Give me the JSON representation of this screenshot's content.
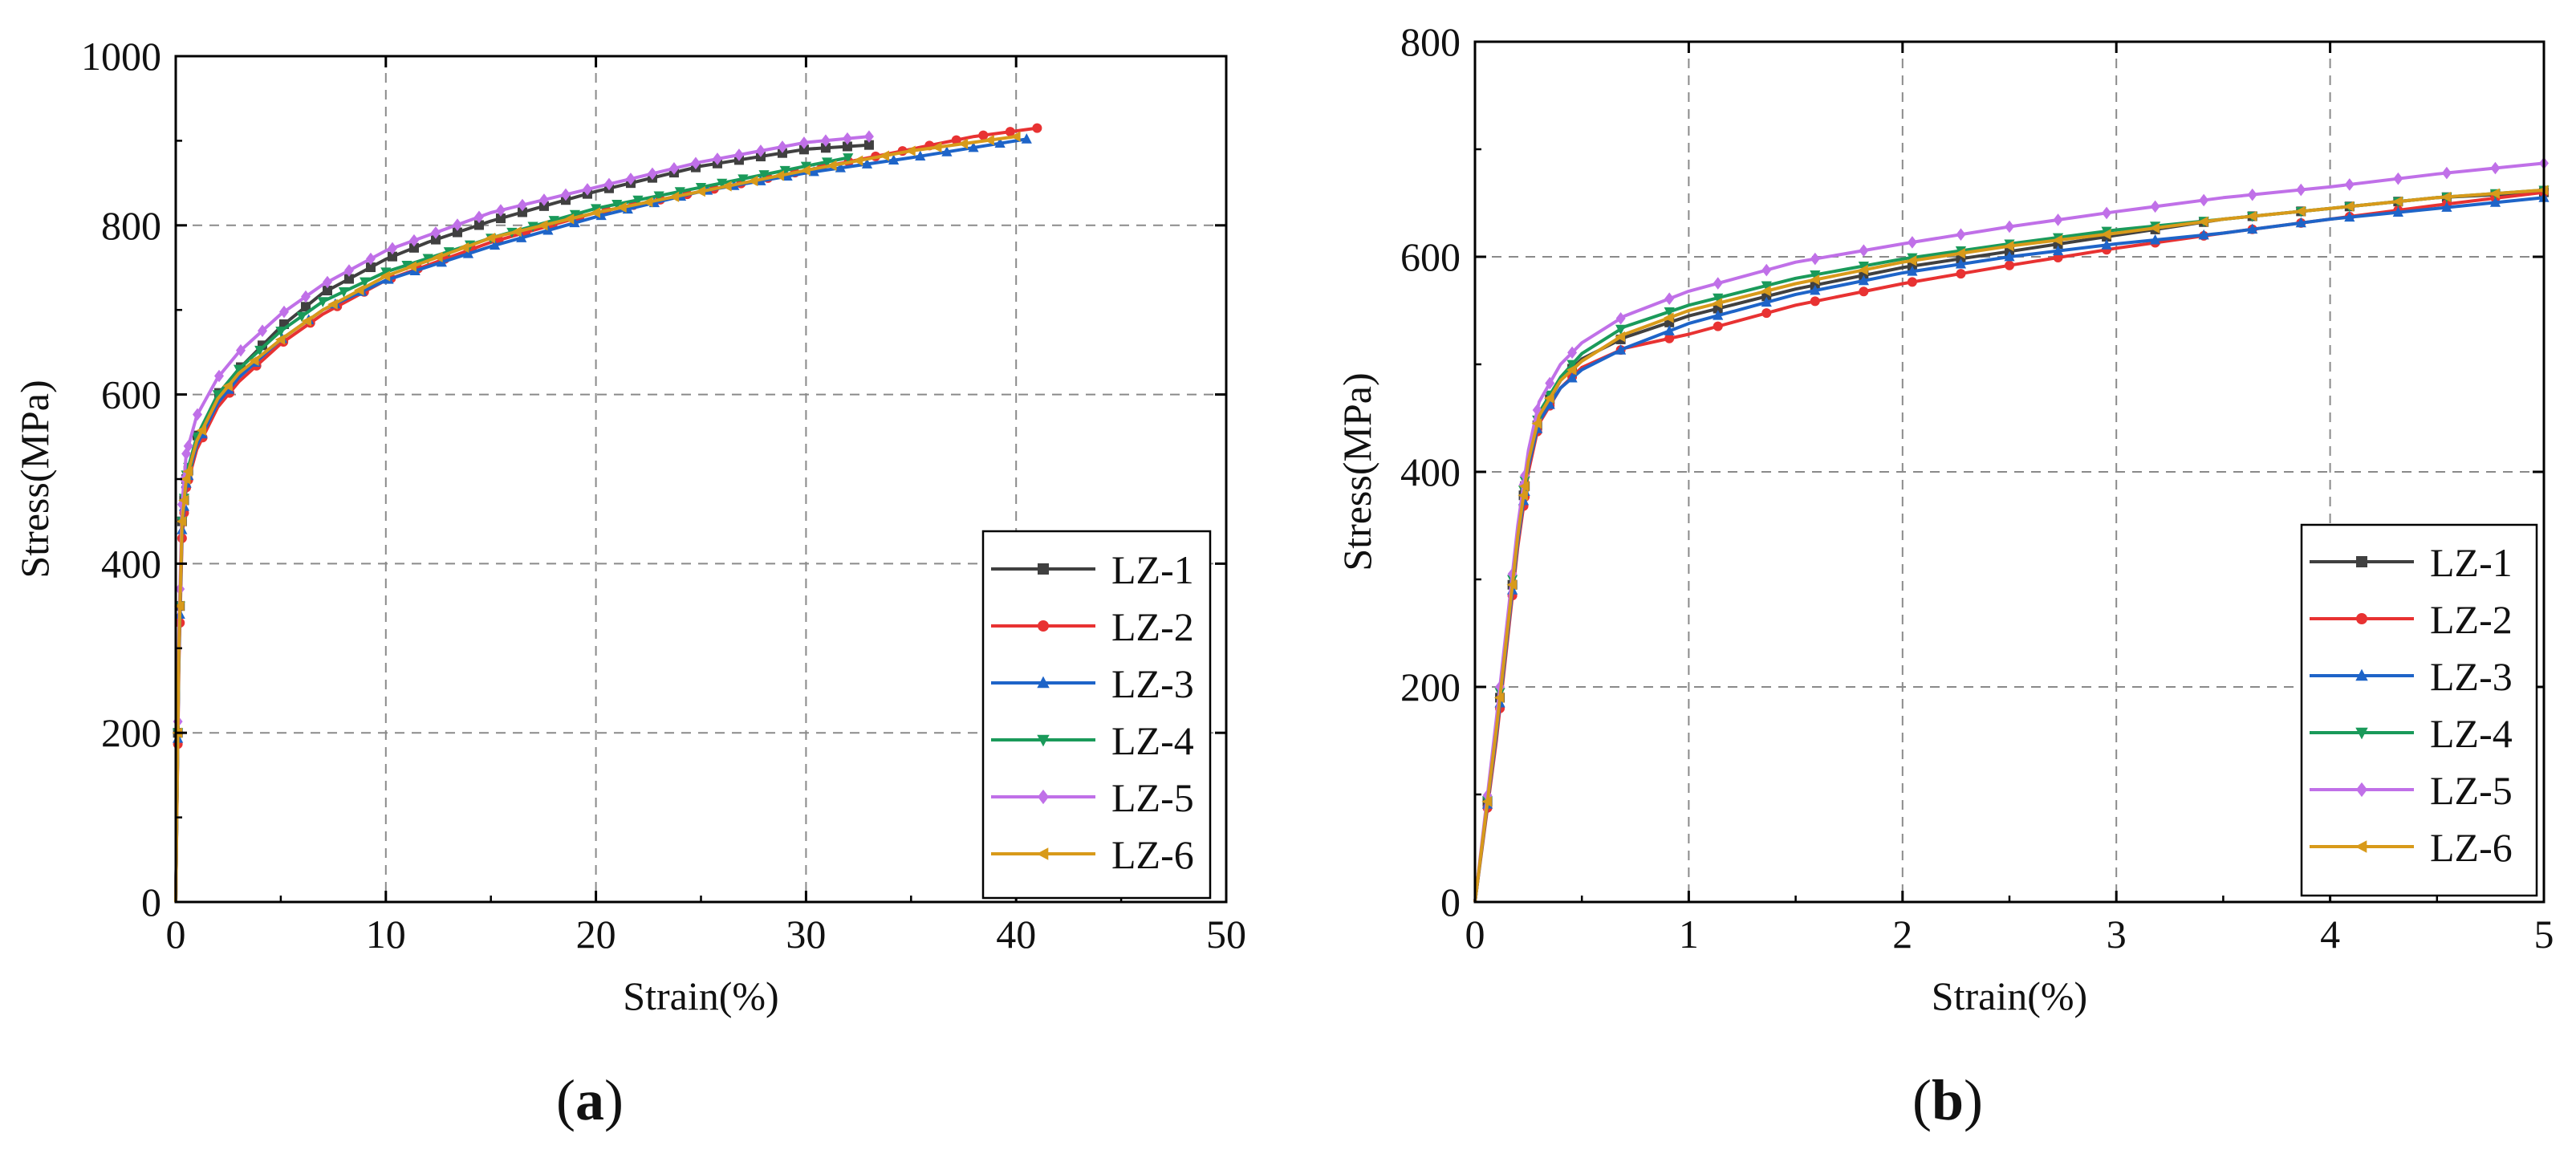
{
  "figure": {
    "panels": [
      "(a)",
      "(b)"
    ]
  },
  "chart_data": [
    {
      "type": "line",
      "panel_label": "(a)",
      "xlabel": "Strain(%)",
      "ylabel": "Stress(MPa)",
      "xlim": [
        0,
        50
      ],
      "ylim": [
        0,
        1000
      ],
      "xticks": [
        "0",
        "10",
        "20",
        "30",
        "40",
        "50"
      ],
      "yticks": [
        "0",
        "200",
        "400",
        "600",
        "800",
        "1000"
      ],
      "grid": true,
      "legend_position": "bottom-right",
      "series": [
        {
          "name": "LZ-1",
          "color": "#404040",
          "marker": "square",
          "x": [
            0,
            0.15,
            0.3,
            0.5,
            1,
            2,
            3,
            5,
            7,
            10,
            12,
            15,
            20,
            25,
            30,
            33
          ],
          "y": [
            0,
            300,
            450,
            500,
            550,
            600,
            630,
            680,
            720,
            760,
            780,
            805,
            840,
            870,
            890,
            895
          ]
        },
        {
          "name": "LZ-2",
          "color": "#e83232",
          "marker": "circle",
          "x": [
            0,
            0.15,
            0.3,
            0.5,
            1,
            2,
            3,
            5,
            7,
            10,
            15,
            20,
            25,
            30,
            35,
            38,
            41
          ],
          "y": [
            0,
            280,
            430,
            490,
            535,
            585,
            615,
            660,
            695,
            735,
            780,
            815,
            840,
            865,
            890,
            905,
            915
          ]
        },
        {
          "name": "LZ-3",
          "color": "#1e64c8",
          "marker": "triangle-up",
          "x": [
            0,
            0.15,
            0.3,
            0.5,
            1,
            2,
            3,
            5,
            7,
            10,
            15,
            20,
            25,
            30,
            35,
            40.5
          ],
          "y": [
            0,
            290,
            440,
            495,
            540,
            590,
            620,
            665,
            700,
            735,
            775,
            810,
            840,
            862,
            880,
            902
          ]
        },
        {
          "name": "LZ-4",
          "color": "#1a9a5a",
          "marker": "triangle-down",
          "x": [
            0,
            0.15,
            0.3,
            0.5,
            1,
            2,
            3,
            5,
            7,
            10,
            15,
            20,
            25,
            30,
            32
          ],
          "y": [
            0,
            300,
            450,
            505,
            550,
            600,
            630,
            675,
            710,
            745,
            785,
            820,
            845,
            870,
            880
          ]
        },
        {
          "name": "LZ-5",
          "color": "#c070e8",
          "marker": "diamond",
          "x": [
            0,
            0.15,
            0.3,
            0.5,
            1,
            2,
            3,
            5,
            7,
            10,
            15,
            20,
            25,
            30,
            33
          ],
          "y": [
            0,
            320,
            470,
            530,
            575,
            620,
            650,
            695,
            730,
            770,
            815,
            845,
            875,
            898,
            905
          ]
        },
        {
          "name": "LZ-6",
          "color": "#d89a1a",
          "marker": "triangle-left",
          "x": [
            0,
            0.15,
            0.3,
            0.5,
            1,
            2,
            3,
            5,
            7,
            10,
            15,
            20,
            25,
            30,
            35,
            40
          ],
          "y": [
            0,
            300,
            450,
            500,
            545,
            595,
            625,
            665,
            700,
            740,
            785,
            815,
            840,
            865,
            888,
            905
          ]
        }
      ]
    },
    {
      "type": "line",
      "panel_label": "(b)",
      "xlabel": "Strain(%)",
      "ylabel": "Stress(MPa)",
      "xlim": [
        0,
        5
      ],
      "ylim": [
        0,
        800
      ],
      "xticks": [
        "0",
        "1",
        "2",
        "3",
        "4",
        "5"
      ],
      "yticks": [
        "0",
        "200",
        "400",
        "600",
        "800"
      ],
      "grid": true,
      "legend_position": "bottom-right",
      "series": [
        {
          "name": "LZ-1",
          "color": "#404040",
          "marker": "square",
          "x": [
            0,
            0.05,
            0.1,
            0.15,
            0.2,
            0.25,
            0.3,
            0.4,
            0.5,
            0.7,
            1,
            1.5,
            2,
            2.5,
            3,
            3.5,
            4,
            4.5,
            5
          ],
          "y": [
            0,
            80,
            160,
            250,
            340,
            410,
            450,
            485,
            505,
            525,
            545,
            570,
            590,
            605,
            620,
            635,
            645,
            655,
            660
          ]
        },
        {
          "name": "LZ-2",
          "color": "#e83232",
          "marker": "circle",
          "x": [
            0,
            0.05,
            0.1,
            0.15,
            0.2,
            0.25,
            0.3,
            0.4,
            0.5,
            0.7,
            1,
            1.5,
            2,
            2.5,
            3,
            3.5,
            4,
            4.5,
            5
          ],
          "y": [
            0,
            75,
            150,
            240,
            330,
            400,
            445,
            478,
            497,
            515,
            528,
            555,
            575,
            592,
            608,
            622,
            635,
            648,
            660
          ]
        },
        {
          "name": "LZ-3",
          "color": "#1e64c8",
          "marker": "triangle-up",
          "x": [
            0,
            0.05,
            0.1,
            0.15,
            0.2,
            0.25,
            0.3,
            0.4,
            0.5,
            0.7,
            1,
            1.5,
            2,
            2.5,
            3,
            3.5,
            4,
            4.5,
            5
          ],
          "y": [
            0,
            78,
            155,
            245,
            335,
            405,
            447,
            478,
            495,
            515,
            538,
            565,
            585,
            600,
            612,
            622,
            635,
            645,
            655
          ]
        },
        {
          "name": "LZ-4",
          "color": "#1a9a5a",
          "marker": "triangle-down",
          "x": [
            0,
            0.05,
            0.1,
            0.15,
            0.2,
            0.25,
            0.3,
            0.4,
            0.5,
            0.7,
            1,
            1.5,
            2,
            2.5,
            3,
            3.5,
            4,
            4.5,
            5
          ],
          "y": [
            0,
            80,
            165,
            255,
            345,
            415,
            455,
            488,
            510,
            535,
            555,
            580,
            598,
            612,
            625,
            635,
            645,
            655,
            662
          ]
        },
        {
          "name": "LZ-5",
          "color": "#c070e8",
          "marker": "diamond",
          "x": [
            0,
            0.05,
            0.1,
            0.15,
            0.2,
            0.25,
            0.3,
            0.4,
            0.5,
            0.7,
            1,
            1.5,
            2,
            2.5,
            3,
            3.5,
            4,
            4.5,
            5
          ],
          "y": [
            0,
            85,
            170,
            260,
            350,
            420,
            465,
            500,
            520,
            545,
            568,
            595,
            612,
            628,
            642,
            655,
            665,
            677,
            687
          ]
        },
        {
          "name": "LZ-6",
          "color": "#d89a1a",
          "marker": "triangle-left",
          "x": [
            0,
            0.05,
            0.1,
            0.15,
            0.2,
            0.25,
            0.3,
            0.4,
            0.5,
            0.7,
            1,
            1.5,
            2,
            2.5,
            3,
            3.5,
            4,
            4.5,
            5
          ],
          "y": [
            0,
            80,
            160,
            250,
            340,
            410,
            452,
            485,
            503,
            528,
            550,
            575,
            595,
            610,
            622,
            635,
            645,
            655,
            662
          ]
        }
      ]
    }
  ]
}
